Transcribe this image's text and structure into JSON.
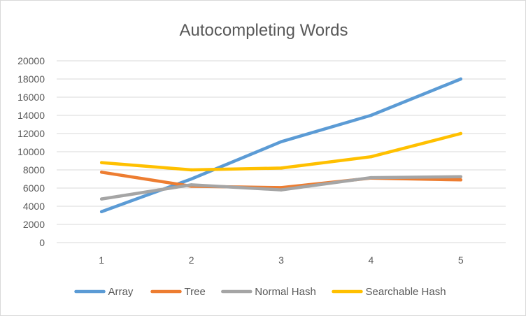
{
  "chart_data": {
    "type": "line",
    "title": "Autocompleting Words",
    "xlabel": "",
    "ylabel": "",
    "x": [
      "1",
      "2",
      "3",
      "4",
      "5"
    ],
    "ylim": [
      0,
      20000
    ],
    "yticks": [
      0,
      2000,
      4000,
      6000,
      8000,
      10000,
      12000,
      14000,
      16000,
      18000,
      20000
    ],
    "grid": true,
    "legend_position": "bottom",
    "series": [
      {
        "name": "Array",
        "color": "#5b9bd5",
        "values": [
          3400,
          7000,
          11100,
          14000,
          18000
        ]
      },
      {
        "name": "Tree",
        "color": "#ed7d31",
        "values": [
          7750,
          6200,
          6050,
          7100,
          6900
        ]
      },
      {
        "name": "Normal Hash",
        "color": "#a5a5a5",
        "values": [
          4800,
          6350,
          5800,
          7150,
          7250
        ]
      },
      {
        "name": "Searchable Hash",
        "color": "#ffc000",
        "values": [
          8800,
          8000,
          8200,
          9450,
          12000
        ]
      }
    ]
  }
}
